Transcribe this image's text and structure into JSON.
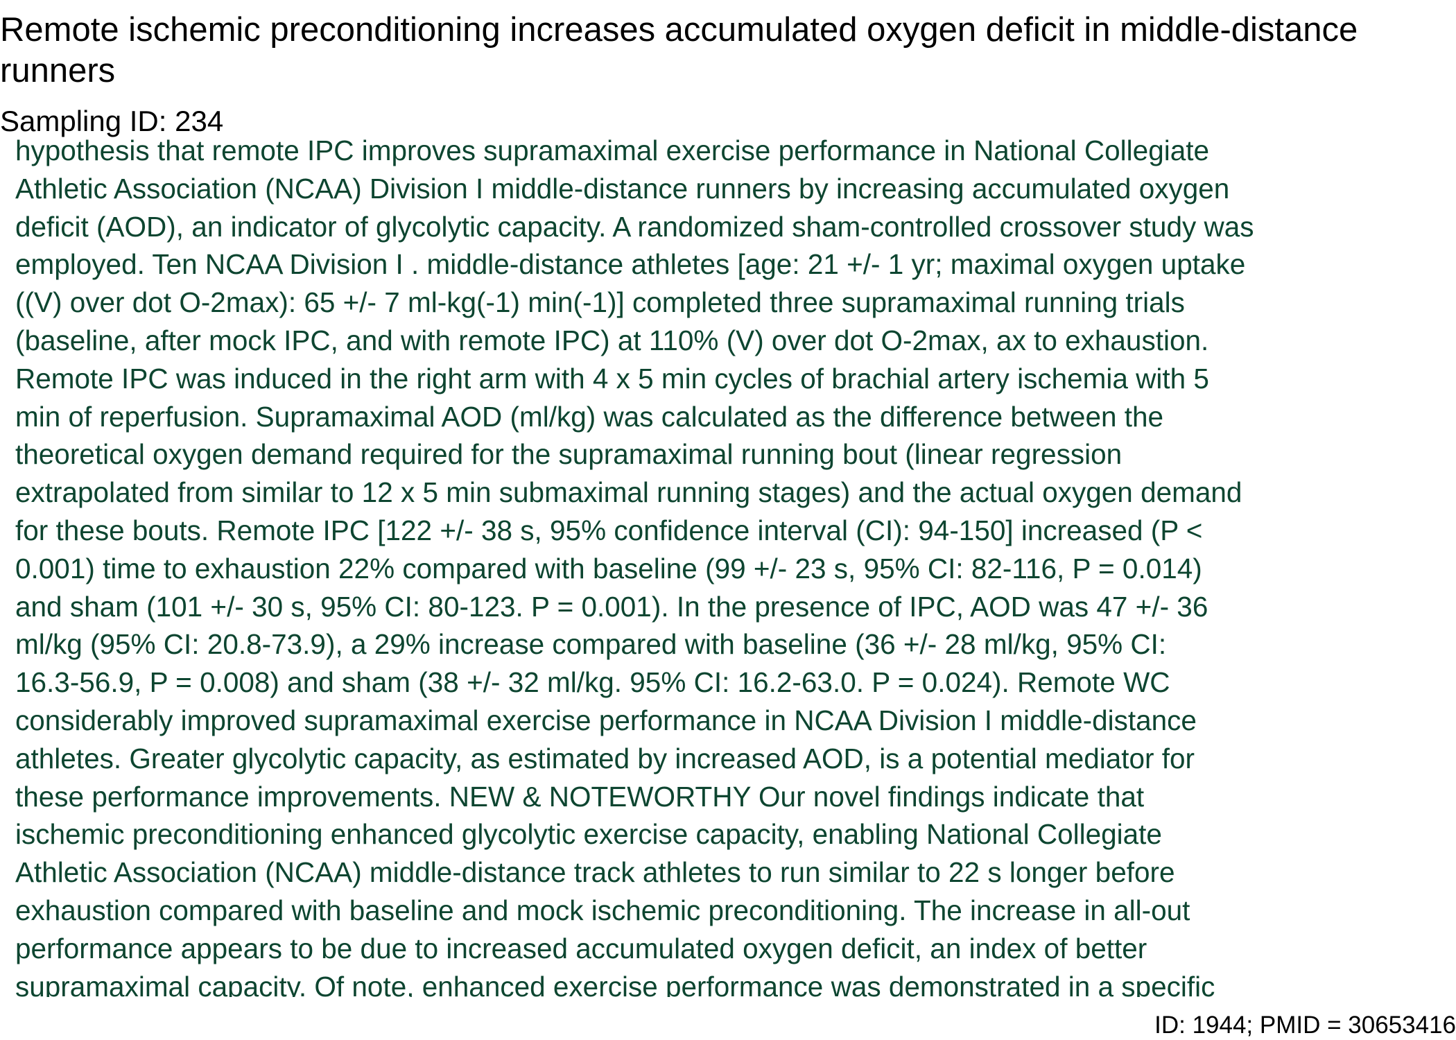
{
  "document": {
    "title": "Remote ischemic preconditioning increases accumulated oxygen deficit in middle-distance runners",
    "sampling_label": "Sampling ID: 234",
    "abstract_lines": "hypothesis that remote IPC improves supramaximal exercise performance in National Collegiate\nAthletic Association (NCAA) Division I middle-distance runners by increasing accumulated oxygen\ndeficit (AOD), an indicator of glycolytic capacity. A randomized sham-controlled crossover study was\nemployed. Ten NCAA Division I . middle-distance athletes [age: 21 +/- 1 yr; maximal oxygen uptake\n((V) over dot O-2max): 65 +/- 7 ml-kg(-1) min(-1)] completed three supramaximal running trials\n(baseline, after mock IPC, and with remote IPC) at 110% (V) over dot O-2max, ax to exhaustion.\nRemote IPC was induced in the right arm with 4 x 5 min cycles of brachial artery ischemia with 5\nmin of reperfusion. Supramaximal AOD (ml/kg) was calculated as the difference between the\ntheoretical oxygen demand required for the supramaximal running bout (linear regression\nextrapolated from similar to 12 x 5 min submaximal running stages) and the actual oxygen demand\nfor these bouts. Remote IPC [122 +/- 38 s, 95% confidence interval (CI): 94-150] increased (P <\n0.001) time to exhaustion 22% compared with baseline (99 +/- 23 s, 95% CI: 82-116, P = 0.014)\nand sham (101 +/- 30 s, 95% CI: 80-123. P = 0.001). In the presence of IPC, AOD was 47 +/- 36\nml/kg (95% CI: 20.8-73.9), a 29% increase compared with baseline (36 +/- 28 ml/kg, 95% CI:\n16.3-56.9, P = 0.008) and sham (38 +/- 32 ml/kg. 95% CI: 16.2-63.0. P = 0.024). Remote WC\nconsiderably improved supramaximal exercise performance in NCAA Division I middle-distance\nathletes. Greater glycolytic capacity, as estimated by increased AOD, is a potential mediator for\nthese performance improvements. NEW & NOTEWORTHY Our novel findings indicate that\nischemic preconditioning enhanced glycolytic exercise capacity, enabling National Collegiate\nAthletic Association (NCAA) middle-distance track athletes to run similar to 22 s longer before\nexhaustion compared with baseline and mock ischemic preconditioning. The increase in all-out\nperformance appears to be due to increased accumulated oxygen deficit, an index of better\nsupramaximal capacity. Of note, enhanced exercise performance was demonstrated in a specific",
    "footer_id": "ID: 1944; PMID = 30653416"
  },
  "colors": {
    "title": "#000000",
    "abstract_text": "#0d4530",
    "background": "#ffffff"
  }
}
